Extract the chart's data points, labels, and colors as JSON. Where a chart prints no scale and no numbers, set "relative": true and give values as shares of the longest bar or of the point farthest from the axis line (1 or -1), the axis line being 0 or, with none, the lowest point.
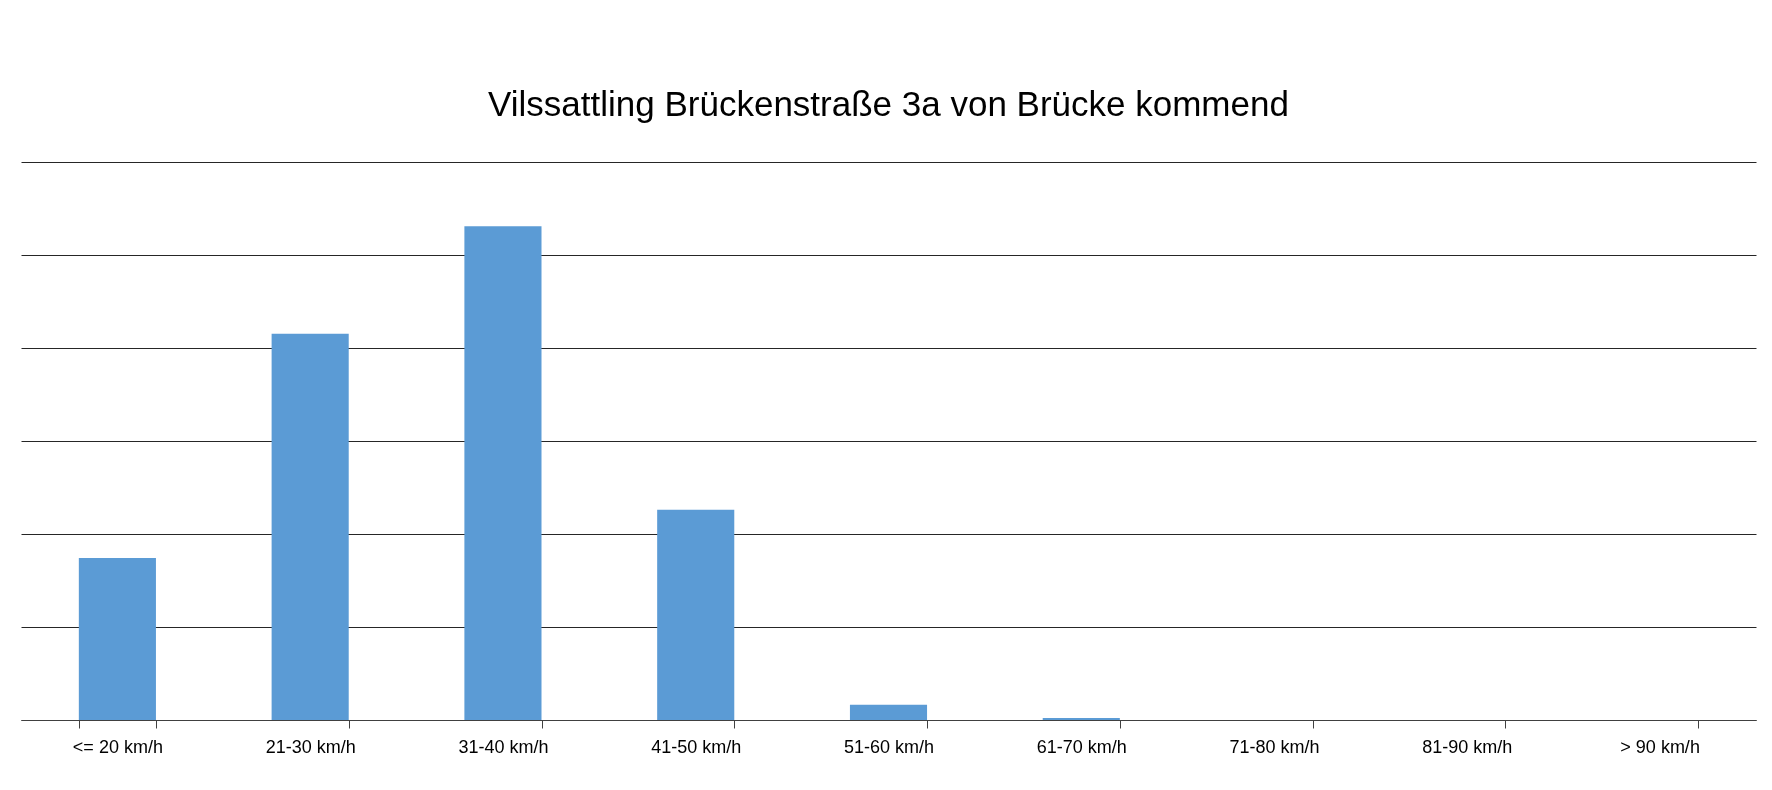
{
  "chart_data": {
    "type": "bar",
    "title": "Vilssattling Brückenstraße 3a von Brücke kommend",
    "categories": [
      "<= 20 km/h",
      "21-30 km/h",
      "31-40 km/h",
      "41-50 km/h",
      "51-60 km/h",
      "61-70 km/h",
      "71-80 km/h",
      "81-90 km/h",
      "> 90 km/h"
    ],
    "values": [
      0.328,
      0.782,
      1,
      0.426,
      0.031,
      0.004,
      0,
      0,
      0
    ],
    "color": "#5b9bd5",
    "relative": true,
    "grid": "y"
  }
}
